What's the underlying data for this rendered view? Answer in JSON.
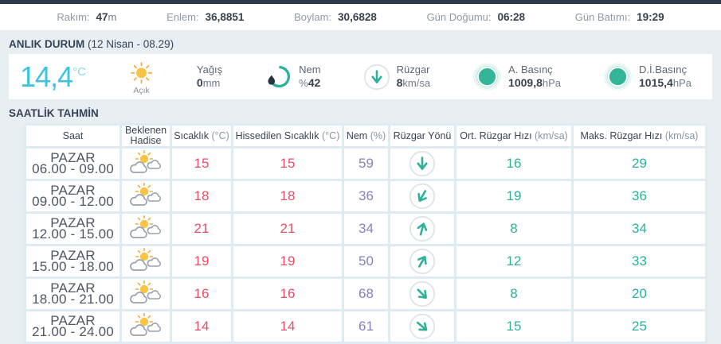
{
  "colors": {
    "page_bg": "#e8eef1",
    "top_strip": "#2d3a4b",
    "heading_navy": "#36445a",
    "accent_cyan": "#3ec5de",
    "temp_red": "#e84f63",
    "humidity_purple": "#8481c5",
    "wind_teal": "#2eb19b",
    "pressure_teal": "#35b597",
    "sun_yellow": "#f9c445"
  },
  "topbar": {
    "stats": [
      {
        "label": "Rakım:",
        "value": "47",
        "suffix": "m"
      },
      {
        "label": "Enlem:",
        "value": "36,8851",
        "suffix": ""
      },
      {
        "label": "Boylam:",
        "value": "30,6828",
        "suffix": ""
      },
      {
        "label": "Gün Doğumu:",
        "value": "06:28",
        "suffix": ""
      },
      {
        "label": "Gün Batımı:",
        "value": "19:29",
        "suffix": ""
      }
    ]
  },
  "current": {
    "section_title": "ANLIK DURUM",
    "section_subtitle": "(12 Nisan - 08.29)",
    "temperature": "14,4",
    "temperature_unit": "°C",
    "condition": "Açık",
    "condition_icon": "sun-icon",
    "metrics": [
      {
        "icon": "none",
        "label": "Yağış",
        "value_prefix": "",
        "value": "0",
        "value_suffix": "mm"
      },
      {
        "icon": "humidity-gauge-icon",
        "label": "Nem",
        "value_prefix": "%",
        "value": "42",
        "value_suffix": ""
      },
      {
        "icon": "wind-direction-icon",
        "label": "Rüzgar",
        "value_prefix": "",
        "value": "8",
        "value_suffix": "km/sa"
      },
      {
        "icon": "pressure-icon",
        "label": "A. Basınç",
        "value_prefix": "",
        "value": "1009,8",
        "value_suffix": "hPa"
      },
      {
        "icon": "pressure-icon",
        "label": "D.İ.Basınç",
        "value_prefix": "",
        "value": "1015,4",
        "value_suffix": "hPa"
      }
    ]
  },
  "forecast": {
    "section_title": "SAATLİK TAHMİN",
    "columns": [
      {
        "label": "Saat",
        "unit": ""
      },
      {
        "label": "Beklenen Hadise",
        "unit": ""
      },
      {
        "label": "Sıcaklık",
        "unit": "(°C)"
      },
      {
        "label": "Hissedilen Sıcaklık",
        "unit": "(°C)"
      },
      {
        "label": "Nem",
        "unit": "(%)"
      },
      {
        "label": "Rüzgar Yönü",
        "unit": ""
      },
      {
        "label": "Ort. Rüzgar Hızı",
        "unit": "(km/sa)"
      },
      {
        "label": "Maks. Rüzgar Hızı",
        "unit": "(km/sa)"
      }
    ],
    "rows": [
      {
        "day": "PAZAR",
        "time": "06.00 - 09.00",
        "condition_icon": "sun-clouds-icon",
        "temp": "15",
        "feels_like": "15",
        "humidity": "59",
        "wind_dir_deg": 0,
        "avg_wind": "16",
        "max_wind": "29"
      },
      {
        "day": "PAZAR",
        "time": "09.00 - 12.00",
        "condition_icon": "sun-clouds-icon",
        "temp": "18",
        "feels_like": "18",
        "humidity": "36",
        "wind_dir_deg": 30,
        "avg_wind": "19",
        "max_wind": "36"
      },
      {
        "day": "PAZAR",
        "time": "12.00 - 15.00",
        "condition_icon": "sun-clouds-icon",
        "temp": "21",
        "feels_like": "21",
        "humidity": "34",
        "wind_dir_deg": 195,
        "avg_wind": "8",
        "max_wind": "34"
      },
      {
        "day": "PAZAR",
        "time": "15.00 - 18.00",
        "condition_icon": "sun-clouds-icon",
        "temp": "19",
        "feels_like": "19",
        "humidity": "50",
        "wind_dir_deg": 210,
        "avg_wind": "12",
        "max_wind": "33"
      },
      {
        "day": "PAZAR",
        "time": "18.00 - 21.00",
        "condition_icon": "sun-clouds-icon",
        "temp": "16",
        "feels_like": "16",
        "humidity": "68",
        "wind_dir_deg": 315,
        "avg_wind": "8",
        "max_wind": "20"
      },
      {
        "day": "PAZAR",
        "time": "21.00 - 24.00",
        "condition_icon": "sun-clouds-icon",
        "temp": "14",
        "feels_like": "14",
        "humidity": "61",
        "wind_dir_deg": 310,
        "avg_wind": "15",
        "max_wind": "25"
      }
    ]
  }
}
